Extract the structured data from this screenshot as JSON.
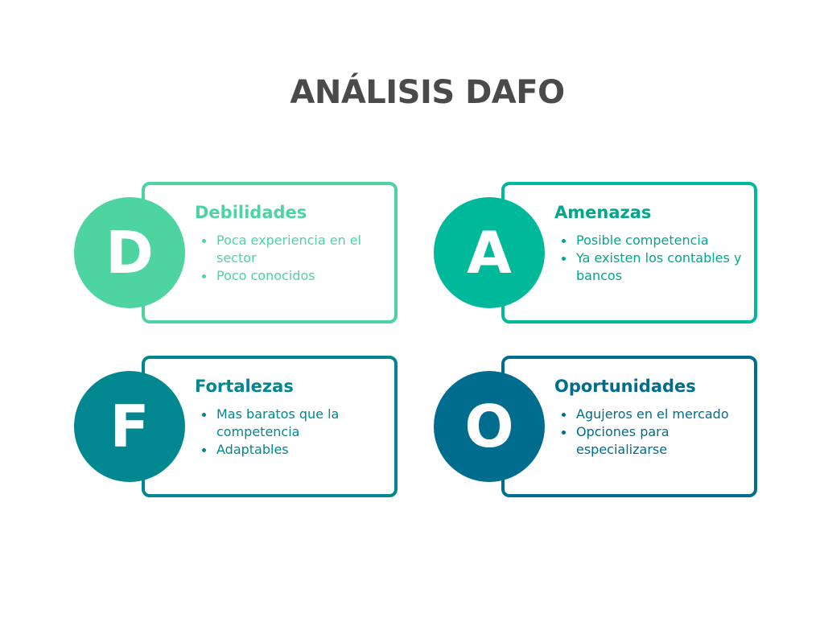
{
  "title": "ANÁLISIS DAFO",
  "quadrants": [
    {
      "letter": "D",
      "heading": "Debilidades",
      "items": [
        "Poca experiencia en el sector",
        "Poco conocidos"
      ],
      "color": "#4dd4a0",
      "text_color": "#4dd4a0"
    },
    {
      "letter": "A",
      "heading": "Amenazas",
      "items": [
        "Posible competencia",
        "Ya existen los contables y bancos"
      ],
      "color": "#00b89a",
      "text_color": "#00a88c"
    },
    {
      "letter": "F",
      "heading": "Fortalezas",
      "items": [
        "Mas baratos que la competencia",
        "Adaptables"
      ],
      "color": "#00878f",
      "text_color": "#00878f"
    },
    {
      "letter": "O",
      "heading": "Oportunidades",
      "items": [
        "Agujeros en el mercado",
        "Opciones para especializarse"
      ],
      "color": "#006d8f",
      "text_color": "#006d8f"
    }
  ]
}
